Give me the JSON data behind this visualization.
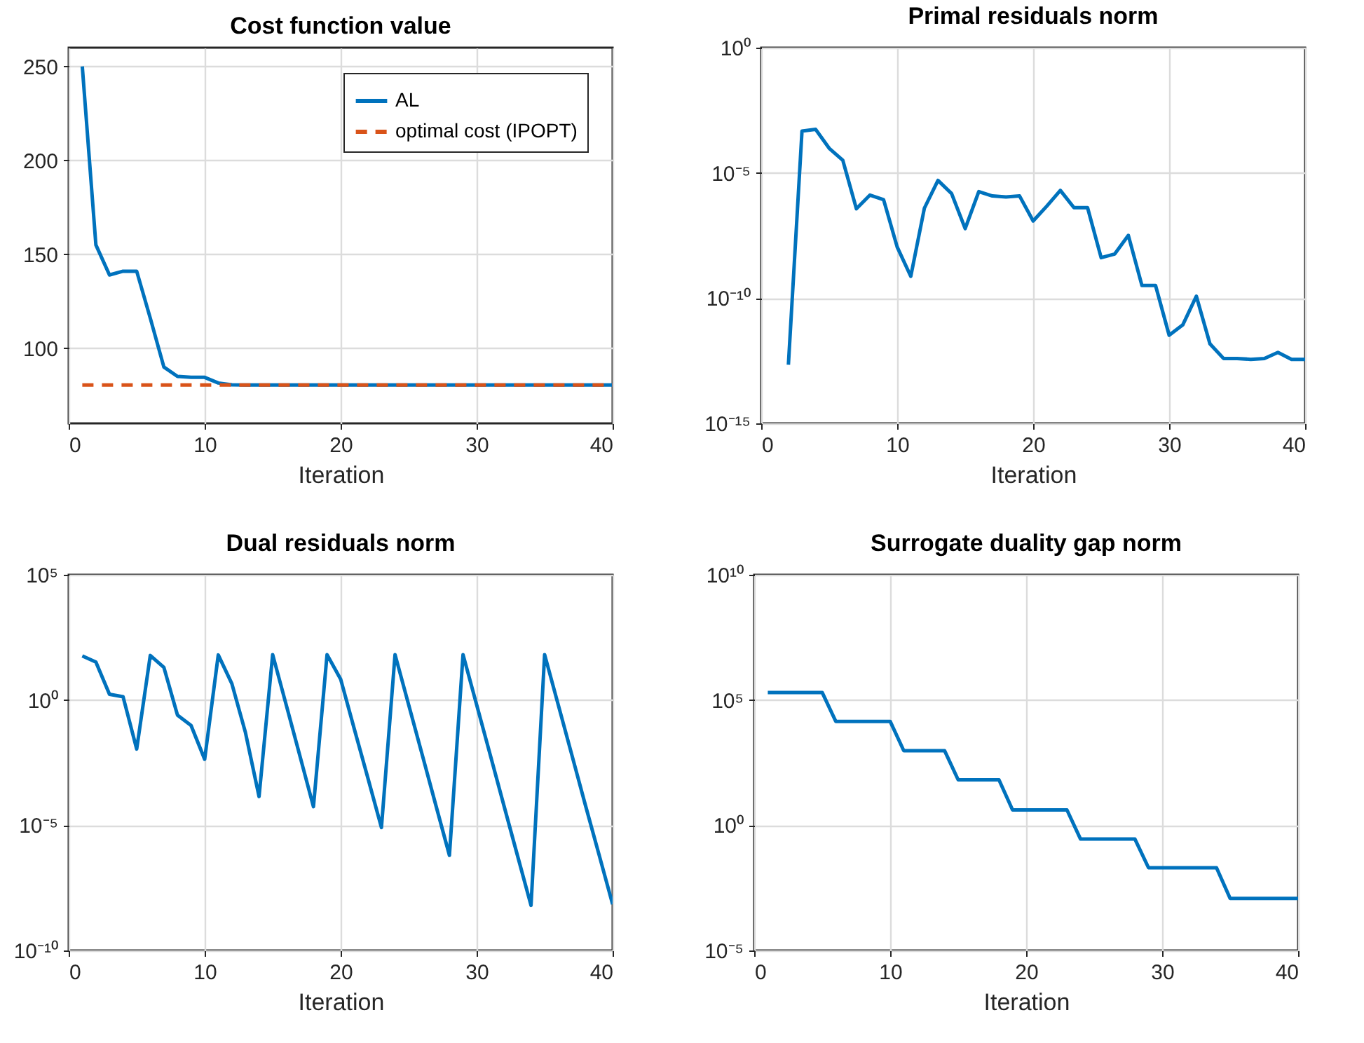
{
  "chart_data": [
    {
      "type": "line",
      "title": "Cost function value",
      "xlabel": "Iteration",
      "xlim": [
        0,
        40
      ],
      "xticks": [
        0,
        10,
        20,
        30,
        40
      ],
      "ylim": [
        60,
        260
      ],
      "yticks": [
        100,
        150,
        200,
        250
      ],
      "grid": true,
      "legend": "top right",
      "series": [
        {
          "name": "AL",
          "color": "#0072bd",
          "line_style": "solid",
          "x": [
            1,
            2,
            3,
            4,
            5,
            6,
            7,
            8,
            9,
            10,
            11,
            12,
            13,
            14,
            15,
            16,
            17,
            18,
            19,
            20,
            21,
            22,
            23,
            24,
            25,
            26,
            27,
            28,
            29,
            30,
            31,
            32,
            33,
            34,
            35,
            36,
            37,
            38,
            39,
            40
          ],
          "values": [
            250,
            155,
            139,
            141,
            141,
            116,
            90,
            85,
            84.5,
            84.5,
            81.5,
            80.5,
            80.4,
            80.4,
            80.4,
            80.4,
            80.4,
            80.4,
            80.4,
            80.4,
            80.4,
            80.4,
            80.4,
            80.4,
            80.4,
            80.4,
            80.4,
            80.4,
            80.4,
            80.4,
            80.4,
            80.4,
            80.4,
            80.4,
            80.4,
            80.4,
            80.4,
            80.4,
            80.4,
            80.4
          ]
        },
        {
          "name": "optimal cost (IPOPT)",
          "color": "#d95319",
          "line_style": "dashed",
          "x": [
            1,
            40
          ],
          "values": [
            80.4,
            80.4
          ]
        }
      ]
    },
    {
      "type": "line",
      "title": "Primal residuals norm",
      "xlabel": "Iteration",
      "xlim": [
        0,
        40
      ],
      "xticks": [
        0,
        10,
        20,
        30,
        40
      ],
      "log": "y",
      "ylim": [
        1e-15,
        1
      ],
      "yticks": [
        {
          "value": 1e-15,
          "label": "10⁻¹⁵"
        },
        {
          "value": 1e-10,
          "label": "10⁻¹⁰"
        },
        {
          "value": 1e-05,
          "label": "10⁻⁵"
        },
        {
          "value": 1,
          "label": "10⁰"
        }
      ],
      "grid": true,
      "series": [
        {
          "color": "#0072bd",
          "x": [
            2,
            3,
            4,
            5,
            6,
            7,
            8,
            9,
            10,
            11,
            12,
            13,
            14,
            15,
            16,
            17,
            18,
            19,
            20,
            21,
            22,
            23,
            24,
            25,
            26,
            27,
            28,
            29,
            30,
            31,
            32,
            33,
            34,
            35,
            36,
            37,
            38,
            39,
            40
          ],
          "values": [
            2.2e-13,
            0.00047,
            0.00055,
            9.6e-05,
            3.2e-05,
            3.7e-07,
            1.3e-06,
            8.5e-07,
            1.1e-08,
            7.4e-10,
            3.9e-07,
            5e-06,
            1.5e-06,
            6e-08,
            1.8e-06,
            1.2e-06,
            1.1e-06,
            1.2e-06,
            1.2e-07,
            4.7e-07,
            2e-06,
            4.1e-07,
            4.1e-07,
            4.1e-09,
            5.8e-09,
            3.2e-08,
            3.2e-10,
            3.2e-10,
            3.3e-12,
            8.5e-12,
            1.2e-10,
            1.5e-12,
            3.9e-13,
            3.9e-13,
            3.6e-13,
            3.9e-13,
            6.8e-13,
            3.6e-13,
            3.6e-13
          ]
        }
      ]
    },
    {
      "type": "line",
      "title": "Dual residuals norm",
      "xlabel": "Iteration",
      "xlim": [
        0,
        40
      ],
      "xticks": [
        0,
        10,
        20,
        30,
        40
      ],
      "log": "y",
      "ylim": [
        1e-10,
        100000.0
      ],
      "yticks": [
        {
          "value": 1e-10,
          "label": "10⁻¹⁰"
        },
        {
          "value": 1e-05,
          "label": "10⁻⁵"
        },
        {
          "value": 1,
          "label": "10⁰"
        },
        {
          "value": 100000.0,
          "label": "10⁵"
        }
      ],
      "grid": true,
      "series": [
        {
          "color": "#0072bd",
          "x": [
            1,
            2,
            3,
            4,
            5,
            6,
            7,
            8,
            9,
            10,
            11,
            12,
            13,
            14,
            15,
            16,
            17,
            18,
            19,
            20,
            21,
            22,
            23,
            24,
            25,
            26,
            27,
            28,
            29,
            30,
            31,
            32,
            33,
            34,
            35,
            36,
            37,
            38,
            39,
            40
          ],
          "values": [
            58,
            33,
            1.7,
            1.35,
            0.011,
            60,
            20,
            0.25,
            0.096,
            0.0043,
            63,
            4.5,
            0.05,
            0.00014,
            65,
            0.63,
            0.006,
            5.5e-05,
            65,
            6.8,
            0.071,
            0.00078,
            8.1e-06,
            65,
            0.65,
            0.0065,
            6.3e-05,
            6.3e-07,
            65,
            0.65,
            0.0065,
            6.3e-05,
            6.3e-07,
            6.3e-09,
            65,
            0.65,
            0.0065,
            6.3e-05,
            6.8e-07,
            7e-09
          ]
        }
      ]
    },
    {
      "type": "line",
      "title": "Surrogate duality gap norm",
      "xlabel": "Iteration",
      "xlim": [
        0,
        40
      ],
      "xticks": [
        0,
        10,
        20,
        30,
        40
      ],
      "log": "y",
      "ylim": [
        1e-05,
        10000000000.0
      ],
      "yticks": [
        {
          "value": 1e-05,
          "label": "10⁻⁵"
        },
        {
          "value": 1,
          "label": "10⁰"
        },
        {
          "value": 100000.0,
          "label": "10⁵"
        },
        {
          "value": 10000000000.0,
          "label": "10¹⁰"
        }
      ],
      "grid": true,
      "series": [
        {
          "color": "#0072bd",
          "x": [
            1,
            2,
            3,
            4,
            5,
            6,
            7,
            8,
            9,
            10,
            11,
            12,
            13,
            14,
            15,
            16,
            17,
            18,
            19,
            20,
            21,
            22,
            23,
            24,
            25,
            26,
            27,
            28,
            29,
            30,
            31,
            32,
            33,
            34,
            35,
            36,
            37,
            38,
            39,
            40
          ],
          "values": [
            200000.0,
            200000.0,
            200000.0,
            200000.0,
            200000.0,
            14000.0,
            14000.0,
            14000.0,
            14000.0,
            14000.0,
            950,
            950,
            950,
            950,
            65,
            65,
            65,
            65,
            4.1,
            4.1,
            4.1,
            4.1,
            4.1,
            0.28,
            0.28,
            0.28,
            0.28,
            0.28,
            0.02,
            0.02,
            0.02,
            0.02,
            0.02,
            0.02,
            0.0012,
            0.0012,
            0.0012,
            0.0012,
            0.0012,
            0.0012
          ]
        }
      ]
    }
  ]
}
